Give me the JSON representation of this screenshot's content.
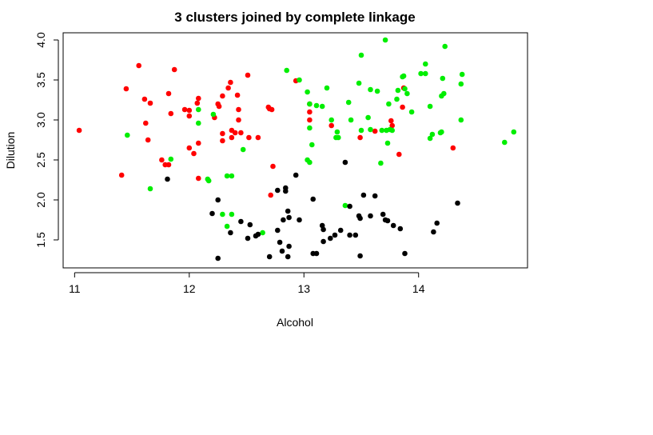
{
  "chart_data": {
    "type": "scatter",
    "title": "3  clusters joined by complete linkage",
    "xlabel": "Alcohol",
    "ylabel": "Dilution",
    "xlim": [
      10.9,
      14.95
    ],
    "ylim": [
      1.15,
      4.09
    ],
    "xticks": [
      11,
      12,
      13,
      14
    ],
    "yticks": [
      1.5,
      2.0,
      2.5,
      3.0,
      3.5,
      4.0
    ],
    "xtick_labels": [
      "11",
      "12",
      "13",
      "14"
    ],
    "ytick_labels": [
      "1.5",
      "2.0",
      "2.5",
      "3.0",
      "3.5",
      "4.0"
    ],
    "grid": false,
    "legend": "none",
    "series": [
      {
        "color": "#ff0000",
        "points": [
          [
            11.04,
            2.87
          ],
          [
            11.41,
            2.31
          ],
          [
            11.45,
            3.39
          ],
          [
            11.56,
            3.68
          ],
          [
            11.61,
            3.26
          ],
          [
            11.62,
            2.96
          ],
          [
            11.64,
            2.75
          ],
          [
            11.66,
            3.21
          ],
          [
            11.76,
            2.5
          ],
          [
            11.79,
            2.44
          ],
          [
            11.82,
            2.44
          ],
          [
            11.82,
            3.33
          ],
          [
            11.84,
            3.08
          ],
          [
            11.87,
            3.63
          ],
          [
            11.96,
            3.13
          ],
          [
            12.0,
            3.05
          ],
          [
            12.0,
            2.65
          ],
          [
            12.0,
            3.12
          ],
          [
            12.04,
            2.58
          ],
          [
            12.07,
            3.21
          ],
          [
            12.08,
            3.27
          ],
          [
            12.08,
            2.71
          ],
          [
            12.08,
            2.27
          ],
          [
            12.22,
            3.03
          ],
          [
            12.25,
            3.2
          ],
          [
            12.26,
            3.17
          ],
          [
            12.29,
            3.3
          ],
          [
            12.29,
            2.83
          ],
          [
            12.29,
            2.74
          ],
          [
            12.34,
            3.4
          ],
          [
            12.36,
            3.47
          ],
          [
            12.37,
            2.87
          ],
          [
            12.37,
            2.78
          ],
          [
            12.4,
            2.84
          ],
          [
            12.42,
            3.31
          ],
          [
            12.43,
            3.13
          ],
          [
            12.43,
            3.0
          ],
          [
            12.45,
            2.84
          ],
          [
            12.51,
            3.56
          ],
          [
            12.52,
            2.78
          ],
          [
            12.6,
            2.78
          ],
          [
            12.69,
            3.16
          ],
          [
            12.72,
            3.13
          ],
          [
            12.7,
            3.14
          ],
          [
            12.71,
            2.06
          ],
          [
            12.73,
            2.42
          ],
          [
            12.93,
            3.49
          ],
          [
            13.05,
            3.2
          ],
          [
            13.05,
            3.1
          ],
          [
            13.05,
            3.0
          ],
          [
            13.24,
            2.93
          ],
          [
            13.49,
            2.78
          ],
          [
            13.62,
            2.86
          ],
          [
            13.76,
            2.99
          ],
          [
            13.77,
            2.93
          ],
          [
            13.83,
            2.57
          ],
          [
            13.86,
            3.16
          ],
          [
            13.87,
            3.4
          ],
          [
            14.3,
            2.65
          ]
        ]
      },
      {
        "color": "#00ee00",
        "points": [
          [
            11.46,
            2.81
          ],
          [
            11.66,
            2.14
          ],
          [
            11.84,
            2.51
          ],
          [
            12.16,
            2.26
          ],
          [
            12.17,
            2.24
          ],
          [
            12.21,
            3.07
          ],
          [
            12.08,
            2.96
          ],
          [
            12.08,
            3.13
          ],
          [
            12.29,
            1.82
          ],
          [
            12.33,
            2.3
          ],
          [
            12.37,
            2.3
          ],
          [
            12.37,
            1.82
          ],
          [
            12.33,
            1.67
          ],
          [
            12.47,
            2.63
          ],
          [
            12.64,
            1.59
          ],
          [
            12.85,
            3.62
          ],
          [
            12.96,
            3.5
          ],
          [
            13.03,
            3.35
          ],
          [
            13.05,
            2.9
          ],
          [
            13.05,
            3.2
          ],
          [
            13.05,
            2.47
          ],
          [
            13.03,
            2.5
          ],
          [
            13.07,
            2.69
          ],
          [
            13.11,
            3.18
          ],
          [
            13.16,
            3.17
          ],
          [
            13.2,
            3.4
          ],
          [
            13.24,
            3.0
          ],
          [
            13.29,
            2.85
          ],
          [
            13.28,
            2.78
          ],
          [
            13.3,
            2.78
          ],
          [
            13.36,
            1.93
          ],
          [
            13.39,
            3.22
          ],
          [
            13.41,
            3.0
          ],
          [
            13.48,
            3.46
          ],
          [
            13.5,
            2.87
          ],
          [
            13.5,
            3.81
          ],
          [
            13.56,
            3.03
          ],
          [
            13.58,
            3.38
          ],
          [
            13.58,
            2.88
          ],
          [
            13.64,
            3.36
          ],
          [
            13.67,
            2.46
          ],
          [
            13.68,
            2.87
          ],
          [
            13.71,
            4.0
          ],
          [
            13.72,
            2.87
          ],
          [
            13.73,
            2.71
          ],
          [
            13.74,
            3.2
          ],
          [
            13.75,
            2.88
          ],
          [
            13.77,
            2.87
          ],
          [
            13.81,
            3.26
          ],
          [
            13.82,
            3.37
          ],
          [
            13.86,
            3.54
          ],
          [
            13.87,
            3.55
          ],
          [
            13.88,
            3.39
          ],
          [
            13.9,
            3.33
          ],
          [
            13.94,
            3.1
          ],
          [
            14.02,
            3.58
          ],
          [
            14.06,
            3.58
          ],
          [
            14.06,
            3.7
          ],
          [
            14.1,
            3.17
          ],
          [
            14.1,
            2.77
          ],
          [
            14.12,
            2.82
          ],
          [
            14.19,
            2.84
          ],
          [
            14.2,
            2.85
          ],
          [
            14.2,
            3.3
          ],
          [
            14.21,
            3.52
          ],
          [
            14.22,
            3.33
          ],
          [
            14.23,
            3.92
          ],
          [
            14.37,
            3.0
          ],
          [
            14.37,
            3.45
          ],
          [
            14.38,
            3.57
          ],
          [
            14.75,
            2.72
          ],
          [
            14.83,
            2.85
          ]
        ]
      },
      {
        "color": "#000000",
        "points": [
          [
            11.81,
            2.26
          ],
          [
            12.2,
            1.83
          ],
          [
            12.25,
            1.27
          ],
          [
            12.25,
            2.0
          ],
          [
            12.36,
            1.59
          ],
          [
            12.45,
            1.73
          ],
          [
            12.51,
            1.52
          ],
          [
            12.53,
            1.69
          ],
          [
            12.58,
            1.55
          ],
          [
            12.6,
            1.57
          ],
          [
            12.7,
            1.29
          ],
          [
            12.77,
            1.62
          ],
          [
            12.77,
            2.12
          ],
          [
            12.79,
            1.47
          ],
          [
            12.81,
            1.36
          ],
          [
            12.82,
            1.75
          ],
          [
            12.84,
            2.15
          ],
          [
            12.84,
            2.11
          ],
          [
            12.86,
            1.29
          ],
          [
            12.86,
            1.86
          ],
          [
            12.87,
            1.42
          ],
          [
            12.87,
            1.78
          ],
          [
            12.93,
            2.31
          ],
          [
            12.96,
            1.75
          ],
          [
            13.08,
            2.01
          ],
          [
            13.08,
            1.33
          ],
          [
            13.11,
            1.33
          ],
          [
            13.16,
            1.68
          ],
          [
            13.17,
            1.63
          ],
          [
            13.17,
            1.48
          ],
          [
            13.23,
            1.52
          ],
          [
            13.27,
            1.56
          ],
          [
            13.32,
            1.62
          ],
          [
            13.36,
            2.47
          ],
          [
            13.4,
            1.92
          ],
          [
            13.4,
            1.56
          ],
          [
            13.45,
            1.56
          ],
          [
            13.48,
            1.8
          ],
          [
            13.49,
            1.77
          ],
          [
            13.52,
            2.06
          ],
          [
            13.49,
            1.3
          ],
          [
            13.58,
            1.8
          ],
          [
            13.62,
            2.05
          ],
          [
            13.69,
            1.82
          ],
          [
            13.71,
            1.75
          ],
          [
            13.73,
            1.74
          ],
          [
            13.78,
            1.68
          ],
          [
            13.84,
            1.64
          ],
          [
            13.88,
            1.33
          ],
          [
            14.13,
            1.6
          ],
          [
            14.16,
            1.71
          ],
          [
            14.34,
            1.96
          ]
        ]
      }
    ]
  }
}
